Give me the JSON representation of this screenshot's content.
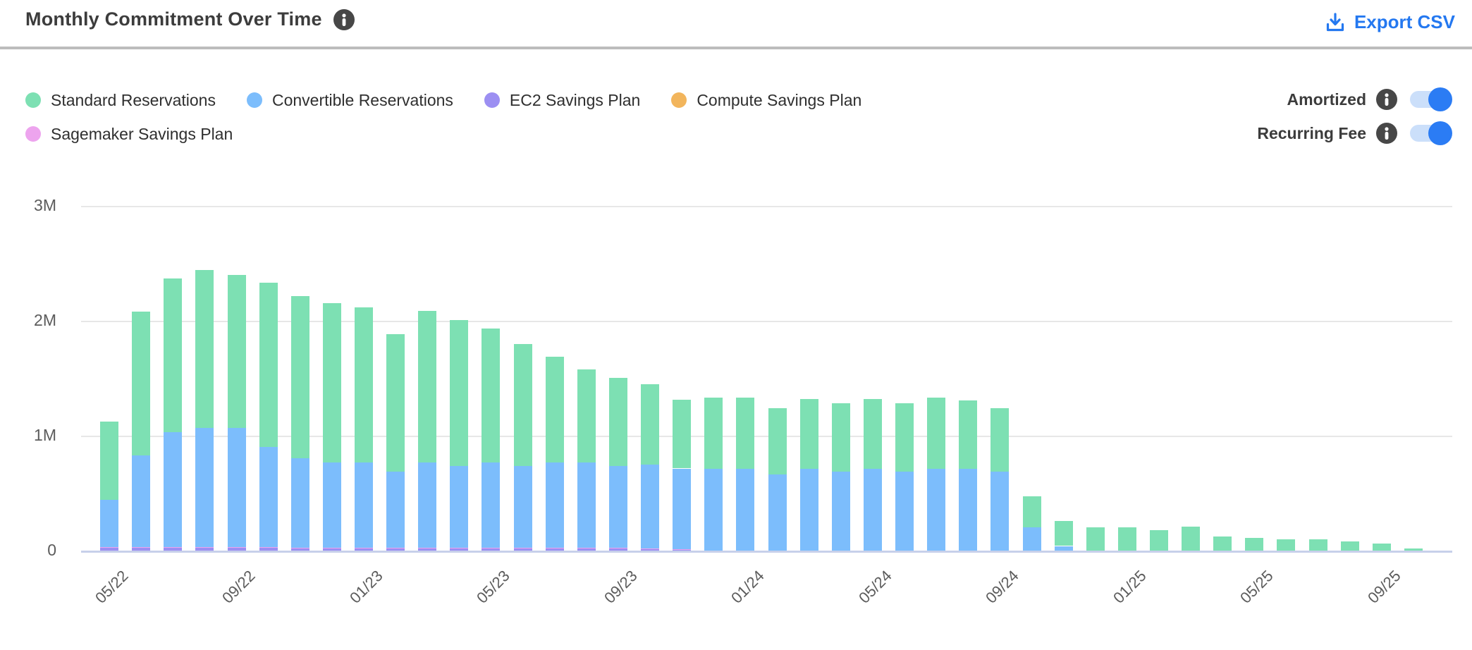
{
  "header": {
    "title": "Monthly Commitment Over Time",
    "export_label": "Export CSV"
  },
  "legend": {
    "items": [
      {
        "label": "Standard Reservations",
        "color": "#7de0b3"
      },
      {
        "label": "Convertible Reservations",
        "color": "#7cbdfc"
      },
      {
        "label": "EC2 Savings Plan",
        "color": "#9c8ff2"
      },
      {
        "label": "Compute Savings Plan",
        "color": "#f2b55c"
      },
      {
        "label": "Sagemaker Savings Plan",
        "color": "#eda4ee"
      }
    ]
  },
  "toggles": [
    {
      "label": "Amortized",
      "state": "on"
    },
    {
      "label": "Recurring Fee",
      "state": "on"
    }
  ],
  "colors": {
    "accent_blue": "#2478f0",
    "toggle_track": "#cbdffa",
    "toggle_knob": "#2b7cf4",
    "info_badge": "#474747"
  },
  "chart_data": {
    "type": "bar",
    "stacked": true,
    "title": "Monthly Commitment Over Time",
    "values_unit": "millions",
    "ylim": [
      0,
      3
    ],
    "y_ticks": [
      {
        "value": 0,
        "label": "0"
      },
      {
        "value": 1,
        "label": "1M"
      },
      {
        "value": 2,
        "label": "2M"
      },
      {
        "value": 3,
        "label": "3M"
      }
    ],
    "grid": true,
    "legend_position": "top-left",
    "x_tick_every": 4,
    "categories": [
      "05/22",
      "06/22",
      "07/22",
      "08/22",
      "09/22",
      "10/22",
      "11/22",
      "12/22",
      "01/23",
      "02/23",
      "03/23",
      "04/23",
      "05/23",
      "06/23",
      "07/23",
      "08/23",
      "09/23",
      "10/23",
      "11/23",
      "12/23",
      "01/24",
      "02/24",
      "03/24",
      "04/24",
      "05/24",
      "06/24",
      "07/24",
      "08/24",
      "09/24",
      "10/24",
      "11/24",
      "12/24",
      "01/25",
      "02/25",
      "03/25",
      "04/25",
      "05/25",
      "06/25",
      "07/25",
      "08/25",
      "09/25",
      "10/25"
    ],
    "stack_order": [
      "EC2 Savings Plan",
      "Sagemaker Savings Plan",
      "Compute Savings Plan",
      "Convertible Reservations",
      "Standard Reservations"
    ],
    "series": [
      {
        "name": "Standard Reservations",
        "color": "#7de0b3",
        "values": [
          0.68,
          1.25,
          1.34,
          1.37,
          1.33,
          1.43,
          1.41,
          1.39,
          1.35,
          1.2,
          1.32,
          1.27,
          1.17,
          1.06,
          0.92,
          0.81,
          0.77,
          0.7,
          0.6,
          0.62,
          0.62,
          0.58,
          0.61,
          0.59,
          0.61,
          0.59,
          0.62,
          0.6,
          0.55,
          0.27,
          0.22,
          0.2,
          0.2,
          0.18,
          0.21,
          0.12,
          0.11,
          0.1,
          0.1,
          0.08,
          0.06,
          0.02
        ]
      },
      {
        "name": "Convertible Reservations",
        "color": "#7cbdfc",
        "values": [
          0.41,
          0.8,
          1.0,
          1.04,
          1.04,
          0.87,
          0.78,
          0.74,
          0.74,
          0.66,
          0.74,
          0.71,
          0.74,
          0.71,
          0.74,
          0.74,
          0.71,
          0.73,
          0.7,
          0.71,
          0.71,
          0.66,
          0.71,
          0.69,
          0.71,
          0.69,
          0.71,
          0.71,
          0.69,
          0.2,
          0.04,
          0,
          0,
          0,
          0,
          0,
          0,
          0,
          0,
          0,
          0,
          0
        ]
      },
      {
        "name": "EC2 Savings Plan",
        "color": "#9c8ff2",
        "values": [
          0.025,
          0.025,
          0.025,
          0.025,
          0.025,
          0.025,
          0.02,
          0.02,
          0.02,
          0.02,
          0.02,
          0.02,
          0.02,
          0.02,
          0.02,
          0.02,
          0.02,
          0.015,
          0.01,
          0,
          0,
          0,
          0,
          0,
          0,
          0,
          0,
          0,
          0,
          0,
          0,
          0,
          0,
          0,
          0,
          0,
          0,
          0,
          0,
          0,
          0,
          0
        ]
      },
      {
        "name": "Compute Savings Plan",
        "color": "#f2b55c",
        "values": [
          0,
          0,
          0,
          0,
          0,
          0,
          0,
          0,
          0,
          0,
          0,
          0,
          0,
          0,
          0,
          0,
          0,
          0,
          0,
          0,
          0,
          0,
          0,
          0,
          0,
          0,
          0,
          0,
          0,
          0,
          0,
          0,
          0,
          0,
          0,
          0,
          0,
          0,
          0,
          0,
          0,
          0
        ]
      },
      {
        "name": "Sagemaker Savings Plan",
        "color": "#eda4ee",
        "values": [
          0.005,
          0.005,
          0.005,
          0.005,
          0.005,
          0.005,
          0.005,
          0.005,
          0.005,
          0.005,
          0.005,
          0.005,
          0.005,
          0.005,
          0.005,
          0.005,
          0.005,
          0.005,
          0.005,
          0,
          0,
          0,
          0,
          0,
          0,
          0,
          0,
          0,
          0,
          0,
          0,
          0,
          0,
          0,
          0,
          0,
          0,
          0,
          0,
          0,
          0,
          0
        ]
      }
    ]
  }
}
